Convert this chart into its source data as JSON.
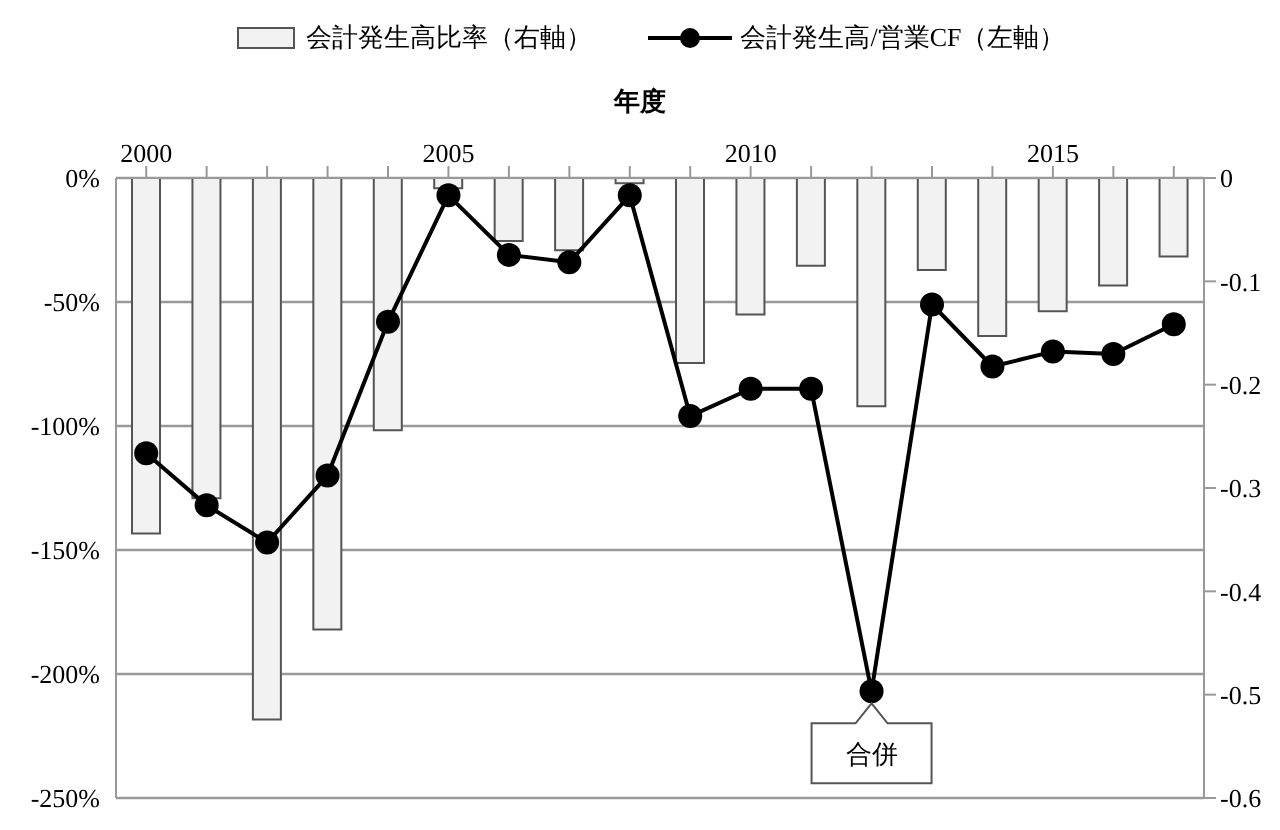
{
  "chart_data": {
    "type": "bar",
    "xlabel": "年度",
    "x": [
      2000,
      2001,
      2002,
      2003,
      2004,
      2005,
      2006,
      2007,
      2008,
      2009,
      2010,
      2011,
      2012,
      2013,
      2014,
      2015,
      2016,
      2017
    ],
    "xlim": [
      1999.5,
      2017.5
    ],
    "xticks": [
      2000,
      {
        "value": 2001,
        "label": null
      },
      {
        "value": 2002,
        "label": null
      },
      {
        "value": 2003,
        "label": null
      },
      {
        "value": 2004,
        "label": null
      },
      2005,
      {
        "value": 2006,
        "label": null
      },
      {
        "value": 2007,
        "label": null
      },
      {
        "value": 2008,
        "label": null
      },
      {
        "value": 2009,
        "label": null
      },
      2010,
      {
        "value": 2011,
        "label": null
      },
      {
        "value": 2012,
        "label": null
      },
      {
        "value": 2013,
        "label": null
      },
      {
        "value": 2014,
        "label": null
      },
      2015,
      {
        "value": 2016,
        "label": null
      },
      {
        "value": 2017,
        "label": null
      }
    ],
    "series": [
      {
        "name": "会計発生高比率（右軸）",
        "axis": "y2",
        "color": "#f2f2f2",
        "values": [
          -0.344,
          -0.31,
          -0.524,
          -0.437,
          -0.244,
          -0.01,
          -0.061,
          -0.07,
          -0.005,
          -0.179,
          -0.132,
          -0.085,
          -0.221,
          -0.089,
          -0.153,
          -0.129,
          -0.104,
          -0.076
        ]
      },
      {
        "name": "会計発生高/営業CF（左軸）",
        "type": "line",
        "axis": "y",
        "color": "#000000",
        "values": [
          -111,
          -132,
          -147,
          -120,
          -58,
          -7,
          -31,
          -34,
          -7,
          -96,
          -85,
          -85,
          -207,
          -51,
          -76,
          -70,
          -71,
          -59
        ]
      }
    ],
    "ylim": [
      -250,
      0
    ],
    "yticks": [
      {
        "value": -250,
        "label": "-250%"
      },
      {
        "value": -200,
        "label": "-200%"
      },
      {
        "value": -150,
        "label": "-150%"
      },
      {
        "value": -100,
        "label": "-100%"
      },
      {
        "value": -50,
        "label": "-50%"
      },
      {
        "value": 0,
        "label": "0%"
      }
    ],
    "y2lim": [
      -0.6,
      0
    ],
    "y2ticks": [
      -0.6,
      -0.5,
      -0.4,
      -0.3,
      -0.2,
      -0.1,
      0
    ],
    "grid": "y",
    "legend": "top",
    "marker": "circle",
    "line_style": "solid",
    "annotations": [
      {
        "text": "合併",
        "x": 2012,
        "y": -207
      }
    ]
  }
}
